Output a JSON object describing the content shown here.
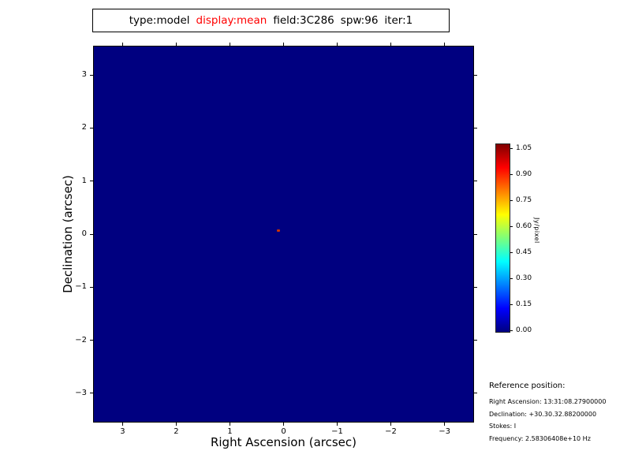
{
  "title": {
    "parts": [
      {
        "text": "type:model",
        "color": "#000000"
      },
      {
        "text": "display:mean",
        "color": "#ff0000"
      },
      {
        "text": "field:3C286",
        "color": "#000000"
      },
      {
        "text": "spw:96",
        "color": "#000000"
      },
      {
        "text": "iter:1",
        "color": "#000000"
      }
    ]
  },
  "chart_data": {
    "type": "heatmap",
    "title": "type:model display:mean field:3C286 spw:96 iter:1",
    "xlabel": "Right Ascension (arcsec)",
    "ylabel": "Declination (arcsec)",
    "xlim": [
      3.55,
      -3.55
    ],
    "ylim": [
      -3.55,
      3.55
    ],
    "x_ticks": [
      "3",
      "2",
      "1",
      "0",
      "−1",
      "−2",
      "−3"
    ],
    "y_ticks": [
      "3",
      "2",
      "1",
      "0",
      "−1",
      "−2",
      "−3"
    ],
    "grid": false,
    "background_value": 0.0,
    "background_color": "#000080",
    "point_source": {
      "x": 0.1,
      "y": 0.07,
      "value": 1.05,
      "color": "#cc3300"
    },
    "colorbar": {
      "label": "Jy/pixel",
      "ticks": [
        "0.00",
        "0.15",
        "0.30",
        "0.45",
        "0.60",
        "0.75",
        "0.90",
        "1.05"
      ],
      "colormap": "jet",
      "min": 0.0,
      "max": 1.05,
      "position": "right"
    }
  },
  "reference": {
    "heading": "Reference position:",
    "lines": [
      "Right Ascension: 13:31:08.27900000",
      "Declination: +30.30.32.88200000",
      "Stokes: I",
      "Frequency: 2.58306408e+10 Hz"
    ]
  }
}
